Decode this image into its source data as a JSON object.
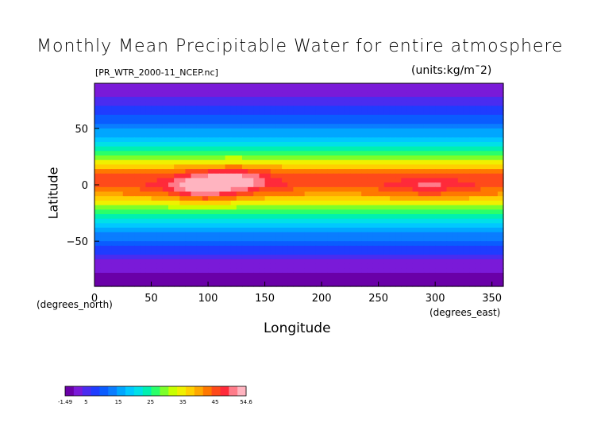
{
  "chart_data": {
    "type": "heatmap",
    "title": "Monthly Mean Precipitable Water for entire atmosphere",
    "subtitle": "[PR_WTR_2000-11_NCEP.nc]",
    "units": "(units:kg/m¯2)",
    "xlabel": "Longitude",
    "ylabel": "Latitude",
    "x_units": "(degrees_east)",
    "y_units": "(degrees_north)",
    "xlim": [
      0,
      360
    ],
    "ylim": [
      -90,
      90
    ],
    "x_ticks": [
      "0",
      "50",
      "100",
      "150",
      "200",
      "250",
      "300",
      "350"
    ],
    "x_tick_values": [
      0,
      50,
      100,
      150,
      200,
      250,
      300,
      350
    ],
    "y_ticks": [
      "50",
      "0",
      "−50"
    ],
    "y_tick_values": [
      50,
      0,
      -50
    ],
    "colorbar": {
      "labels": [
        "-1.49",
        "5",
        "15",
        "25",
        "35",
        "45",
        "54.6"
      ],
      "values": [
        -1.49,
        5,
        15,
        25,
        35,
        45,
        54.6
      ],
      "colors": [
        "#6a00a8",
        "#7a1ad8",
        "#4a2cf0",
        "#1f3cff",
        "#0a5cff",
        "#0a7dff",
        "#00a6ff",
        "#00c8ff",
        "#00e0e8",
        "#00f0b0",
        "#2aff6a",
        "#7cff2a",
        "#c8ff00",
        "#f0f000",
        "#ffd000",
        "#ffa800",
        "#ff7800",
        "#ff4a1a",
        "#ff2a3a",
        "#ff7c8a",
        "#ffb4c0"
      ]
    },
    "lat_band_values": [
      {
        "lat": 80,
        "value": 3
      },
      {
        "lat": 70,
        "value": 6
      },
      {
        "lat": 60,
        "value": 10
      },
      {
        "lat": 50,
        "value": 14
      },
      {
        "lat": 40,
        "value": 18
      },
      {
        "lat": 30,
        "value": 24
      },
      {
        "lat": 20,
        "value": 34
      },
      {
        "lat": 10,
        "value": 44
      },
      {
        "lat": 0,
        "value": 46
      },
      {
        "lat": -10,
        "value": 40
      },
      {
        "lat": -20,
        "value": 30
      },
      {
        "lat": -30,
        "value": 22
      },
      {
        "lat": -40,
        "value": 16
      },
      {
        "lat": -50,
        "value": 11
      },
      {
        "lat": -60,
        "value": 7
      },
      {
        "lat": -70,
        "value": 3
      },
      {
        "lat": -80,
        "value": 1
      }
    ],
    "regional_max": [
      {
        "lon": 95,
        "lat": -3,
        "value": 54
      },
      {
        "lon": 125,
        "lat": 5,
        "value": 52
      },
      {
        "lon": 295,
        "lat": -3,
        "value": 48
      }
    ]
  }
}
